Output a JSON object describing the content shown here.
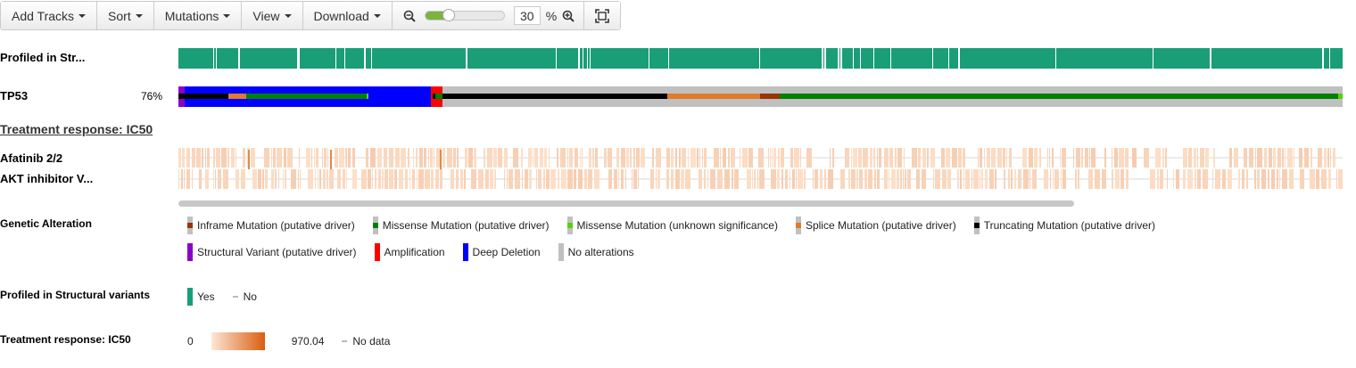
{
  "toolbar": {
    "add_tracks": "Add Tracks",
    "sort": "Sort",
    "mutations": "Mutations",
    "view": "View",
    "download": "Download",
    "zoom_value": "30",
    "zoom_unit": "%",
    "zoom_fraction": 0.3
  },
  "tracks": {
    "profiled_label": "Profiled in Str...",
    "gene_label": "TP53",
    "gene_pct": "76%",
    "heading": "Treatment response: IC50",
    "drug1_label": "Afatinib 2/2",
    "drug2_label": "AKT inhibitor V..."
  },
  "legend": {
    "genetic": {
      "title": "Genetic Alteration",
      "items": [
        {
          "label": "Inframe Mutation (putative driver)",
          "color": "#993404"
        },
        {
          "label": "Missense Mutation (putative driver)",
          "color": "#008000"
        },
        {
          "label": "Missense Mutation (unknown significance)",
          "color": "#53d400"
        },
        {
          "label": "Splice Mutation (putative driver)",
          "color": "#e07b2a"
        },
        {
          "label": "Truncating Mutation (putative driver)",
          "color": "#000000"
        },
        {
          "label": "Structural Variant (putative driver)",
          "color": "#8b00c9"
        },
        {
          "label": "Amplification",
          "color": "#ff0000"
        },
        {
          "label": "Deep Deletion",
          "color": "#0000ff"
        },
        {
          "label": "No alterations",
          "color": "#c0c0c0"
        }
      ]
    },
    "profiled": {
      "title": "Profiled in Structural variants",
      "yes": "Yes",
      "no": "No",
      "yes_color": "#1a9e77"
    },
    "treatment": {
      "title": "Treatment response: IC50",
      "min": "0",
      "max": "970.04",
      "no_data": "No data"
    }
  }
}
